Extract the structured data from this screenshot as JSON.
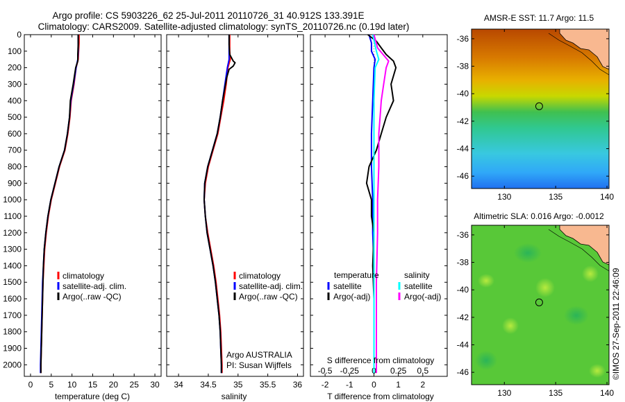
{
  "header": {
    "line1": "Argo profile: CS 5903226_62 25-Jul-2011 20110726_31 40.912S 133.391E",
    "line2": "Climatology: CARS2009. Satellite-adjusted climatology: synTS_20110726.nc (0.19d later)"
  },
  "colors": {
    "climatology": "#ff0000",
    "satellite": "#0000ff",
    "argo": "#000000",
    "satellite_s": "#00ffff",
    "argo_s": "#ff00ff"
  },
  "chart_data": [
    {
      "type": "line",
      "name": "temperature-panel",
      "xlabel": "temperature (deg C)",
      "ylabel": "",
      "xlim": [
        -1.5,
        31.5
      ],
      "ylim": [
        2070,
        0
      ],
      "xticks": [
        0,
        5,
        10,
        15,
        20,
        25,
        30
      ],
      "yticks": [
        0,
        100,
        200,
        300,
        400,
        500,
        600,
        700,
        800,
        900,
        1000,
        1100,
        1200,
        1300,
        1400,
        1500,
        1600,
        1700,
        1800,
        1900,
        2000
      ],
      "legend": [
        "climatology",
        "satellite-adj. clim.",
        "Argo(..raw -QC)"
      ],
      "series": [
        {
          "name": "climatology",
          "color": "#ff0000",
          "points": [
            [
              11.7,
              0
            ],
            [
              11.7,
              50
            ],
            [
              11.6,
              100
            ],
            [
              11.5,
              150
            ],
            [
              11.0,
              200
            ],
            [
              10.5,
              300
            ],
            [
              9.8,
              400
            ],
            [
              9.5,
              500
            ],
            [
              9.0,
              600
            ],
            [
              8.3,
              700
            ],
            [
              7.0,
              800
            ],
            [
              6.0,
              900
            ],
            [
              5.0,
              1000
            ],
            [
              4.3,
              1100
            ],
            [
              3.8,
              1200
            ],
            [
              3.4,
              1300
            ],
            [
              3.2,
              1400
            ],
            [
              3.0,
              1500
            ],
            [
              2.9,
              1600
            ],
            [
              2.8,
              1700
            ],
            [
              2.7,
              1800
            ],
            [
              2.6,
              1900
            ],
            [
              2.5,
              2000
            ],
            [
              2.5,
              2050
            ]
          ]
        },
        {
          "name": "satellite-adj. clim.",
          "color": "#0000ff",
          "points": [
            [
              11.5,
              0
            ],
            [
              11.5,
              50
            ],
            [
              11.5,
              100
            ],
            [
              11.4,
              150
            ],
            [
              11.0,
              200
            ],
            [
              10.4,
              300
            ],
            [
              9.7,
              400
            ],
            [
              9.4,
              500
            ],
            [
              8.9,
              600
            ],
            [
              8.2,
              700
            ],
            [
              6.9,
              800
            ],
            [
              5.9,
              900
            ],
            [
              4.9,
              1000
            ],
            [
              4.2,
              1100
            ],
            [
              3.7,
              1200
            ],
            [
              3.3,
              1300
            ],
            [
              3.1,
              1400
            ],
            [
              2.9,
              1500
            ],
            [
              2.8,
              1600
            ],
            [
              2.7,
              1700
            ],
            [
              2.6,
              1800
            ],
            [
              2.5,
              1900
            ],
            [
              2.4,
              2000
            ],
            [
              2.4,
              2050
            ]
          ]
        },
        {
          "name": "Argo(..raw -QC)",
          "color": "#000000",
          "points": [
            [
              11.5,
              0
            ],
            [
              11.5,
              60
            ],
            [
              11.4,
              120
            ],
            [
              11.4,
              160
            ],
            [
              10.9,
              200
            ],
            [
              10.3,
              300
            ],
            [
              9.6,
              400
            ],
            [
              9.4,
              500
            ],
            [
              8.9,
              600
            ],
            [
              8.2,
              700
            ],
            [
              6.9,
              800
            ],
            [
              5.9,
              900
            ],
            [
              4.9,
              1000
            ],
            [
              4.2,
              1100
            ],
            [
              3.7,
              1200
            ],
            [
              3.3,
              1300
            ],
            [
              3.1,
              1400
            ],
            [
              3.0,
              1500
            ],
            [
              2.9,
              1600
            ],
            [
              2.8,
              1700
            ],
            [
              2.7,
              1800
            ],
            [
              2.6,
              1900
            ],
            [
              2.5,
              2000
            ],
            [
              2.5,
              2050
            ]
          ]
        }
      ]
    },
    {
      "type": "line",
      "name": "salinity-panel",
      "xlabel": "salinity",
      "xlim": [
        33.8,
        36.1
      ],
      "ylim": [
        2070,
        0
      ],
      "xticks": [
        34,
        34.5,
        35,
        35.5,
        36
      ],
      "legend": [
        "climatology",
        "satellite-adj. clim.",
        "Argo(..raw -QC)"
      ],
      "annotation": [
        "Argo AUSTRALIA",
        "PI: Susan Wijffels"
      ],
      "series": [
        {
          "name": "climatology",
          "color": "#ff0000",
          "points": [
            [
              34.86,
              0
            ],
            [
              34.86,
              100
            ],
            [
              34.87,
              150
            ],
            [
              34.83,
              200
            ],
            [
              34.8,
              300
            ],
            [
              34.76,
              400
            ],
            [
              34.71,
              500
            ],
            [
              34.66,
              600
            ],
            [
              34.58,
              700
            ],
            [
              34.5,
              800
            ],
            [
              34.45,
              900
            ],
            [
              34.43,
              1000
            ],
            [
              34.45,
              1100
            ],
            [
              34.49,
              1200
            ],
            [
              34.54,
              1300
            ],
            [
              34.59,
              1400
            ],
            [
              34.63,
              1500
            ],
            [
              34.66,
              1600
            ],
            [
              34.69,
              1700
            ],
            [
              34.71,
              1800
            ],
            [
              34.72,
              1900
            ],
            [
              34.73,
              2000
            ],
            [
              34.73,
              2050
            ]
          ]
        },
        {
          "name": "satellite-adj. clim.",
          "color": "#0000ff",
          "points": [
            [
              34.85,
              0
            ],
            [
              34.85,
              100
            ],
            [
              34.85,
              150
            ],
            [
              34.82,
              200
            ],
            [
              34.78,
              300
            ],
            [
              34.74,
              400
            ],
            [
              34.7,
              500
            ],
            [
              34.65,
              600
            ],
            [
              34.57,
              700
            ],
            [
              34.49,
              800
            ],
            [
              34.44,
              900
            ],
            [
              34.43,
              1000
            ],
            [
              34.45,
              1100
            ],
            [
              34.48,
              1200
            ],
            [
              34.53,
              1300
            ],
            [
              34.58,
              1400
            ],
            [
              34.62,
              1500
            ],
            [
              34.65,
              1600
            ],
            [
              34.68,
              1700
            ],
            [
              34.7,
              1800
            ],
            [
              34.71,
              1900
            ],
            [
              34.72,
              2000
            ],
            [
              34.72,
              2050
            ]
          ]
        },
        {
          "name": "Argo(..raw -QC)",
          "color": "#000000",
          "points": [
            [
              34.85,
              0
            ],
            [
              34.85,
              60
            ],
            [
              34.86,
              120
            ],
            [
              34.92,
              160
            ],
            [
              34.95,
              170
            ],
            [
              34.92,
              190
            ],
            [
              34.85,
              210
            ],
            [
              34.81,
              260
            ],
            [
              34.78,
              320
            ],
            [
              34.74,
              400
            ],
            [
              34.7,
              500
            ],
            [
              34.65,
              600
            ],
            [
              34.57,
              700
            ],
            [
              34.49,
              800
            ],
            [
              34.44,
              900
            ],
            [
              34.43,
              1000
            ],
            [
              34.45,
              1100
            ],
            [
              34.48,
              1200
            ],
            [
              34.53,
              1300
            ],
            [
              34.58,
              1400
            ],
            [
              34.62,
              1500
            ],
            [
              34.65,
              1600
            ],
            [
              34.68,
              1700
            ],
            [
              34.7,
              1800
            ],
            [
              34.71,
              1900
            ],
            [
              34.72,
              2000
            ],
            [
              34.72,
              2050
            ]
          ]
        }
      ]
    },
    {
      "type": "line",
      "name": "difference-panel",
      "xlabel": "T difference from climatology",
      "top_xlabel": "S difference from climatology",
      "xlim": [
        -2.6,
        3.0
      ],
      "ylim": [
        2070,
        0
      ],
      "xticks": [
        -2,
        -1,
        0,
        1,
        2
      ],
      "top_xticks": [
        {
          "label": "-0.5",
          "at": -2.0
        },
        {
          "label": "-0.25",
          "at": -1.0
        },
        {
          "label": "0",
          "at": 0
        },
        {
          "label": "0.25",
          "at": 1.0
        },
        {
          "label": "0.5",
          "at": 2.0
        }
      ],
      "legend_left_title": "temperature",
      "legend_right_title": "salinity",
      "legend": [
        "satellite",
        "Argo(-adj)",
        "satellite",
        "Argo(-adj)"
      ],
      "series": [
        {
          "name": "temperature satellite",
          "color": "#0000ff",
          "points": [
            [
              -0.2,
              0
            ],
            [
              -0.1,
              50
            ],
            [
              -0.1,
              100
            ],
            [
              0.05,
              150
            ],
            [
              0.0,
              200
            ],
            [
              -0.05,
              400
            ],
            [
              -0.1,
              600
            ],
            [
              -0.1,
              800
            ],
            [
              -0.05,
              1000
            ],
            [
              -0.05,
              1200
            ],
            [
              0,
              1400
            ],
            [
              0,
              1600
            ],
            [
              0,
              1800
            ],
            [
              0,
              2050
            ]
          ]
        },
        {
          "name": "temperature Argo(-adj)",
          "color": "#000000",
          "points": [
            [
              -0.25,
              0
            ],
            [
              0.1,
              40
            ],
            [
              0.3,
              80
            ],
            [
              0.5,
              120
            ],
            [
              0.8,
              160
            ],
            [
              0.9,
              200
            ],
            [
              0.7,
              300
            ],
            [
              0.8,
              400
            ],
            [
              0.5,
              500
            ],
            [
              0.3,
              600
            ],
            [
              0.1,
              700
            ],
            [
              -0.2,
              800
            ],
            [
              -0.3,
              900
            ],
            [
              -0.1,
              1000
            ],
            [
              -0.1,
              1100
            ],
            [
              0,
              1200
            ],
            [
              -0.05,
              1400
            ],
            [
              0,
              1600
            ],
            [
              0,
              1800
            ],
            [
              0,
              2050
            ]
          ]
        },
        {
          "name": "salinity satellite",
          "color": "#00ffff",
          "points": [
            [
              -0.05,
              0
            ],
            [
              0.1,
              100
            ],
            [
              0.2,
              150
            ],
            [
              0.05,
              200
            ],
            [
              0.0,
              400
            ],
            [
              0,
              600
            ],
            [
              0,
              800
            ],
            [
              0,
              1000
            ],
            [
              0,
              1400
            ],
            [
              0,
              1800
            ],
            [
              0,
              2050
            ]
          ]
        },
        {
          "name": "salinity Argo(-adj)",
          "color": "#ff00ff",
          "points": [
            [
              0.0,
              0
            ],
            [
              0.15,
              80
            ],
            [
              0.6,
              160
            ],
            [
              0.5,
              200
            ],
            [
              0.4,
              300
            ],
            [
              0.3,
              400
            ],
            [
              0.25,
              500
            ],
            [
              0.2,
              600
            ],
            [
              0.2,
              800
            ],
            [
              0.15,
              1000
            ],
            [
              0.15,
              1200
            ],
            [
              0.1,
              1500
            ],
            [
              0.1,
              1800
            ],
            [
              0.1,
              2050
            ]
          ]
        }
      ]
    },
    {
      "type": "heatmap",
      "name": "sst-map",
      "title": "AMSR-E SST: 11.7  Argo: 11.5",
      "xlim": [
        126.8,
        140.2
      ],
      "ylim": [
        -46.9,
        -35.3
      ],
      "xticks": [
        130,
        135,
        140
      ],
      "yticks": [
        -36,
        -38,
        -40,
        -42,
        -44,
        -46
      ],
      "marker": {
        "lon": 133.391,
        "lat": -40.912
      }
    },
    {
      "type": "heatmap",
      "name": "sla-map",
      "title": "Altimetric SLA: 0.016  Argo: -0.0012",
      "xlim": [
        126.8,
        140.2
      ],
      "ylim": [
        -46.9,
        -35.3
      ],
      "xticks": [
        130,
        135,
        140
      ],
      "yticks": [
        -36,
        -38,
        -40,
        -42,
        -44,
        -46
      ],
      "marker": {
        "lon": 133.391,
        "lat": -40.912
      }
    }
  ],
  "credit": "©IMOS 27-Sep-2011 22:46:09"
}
